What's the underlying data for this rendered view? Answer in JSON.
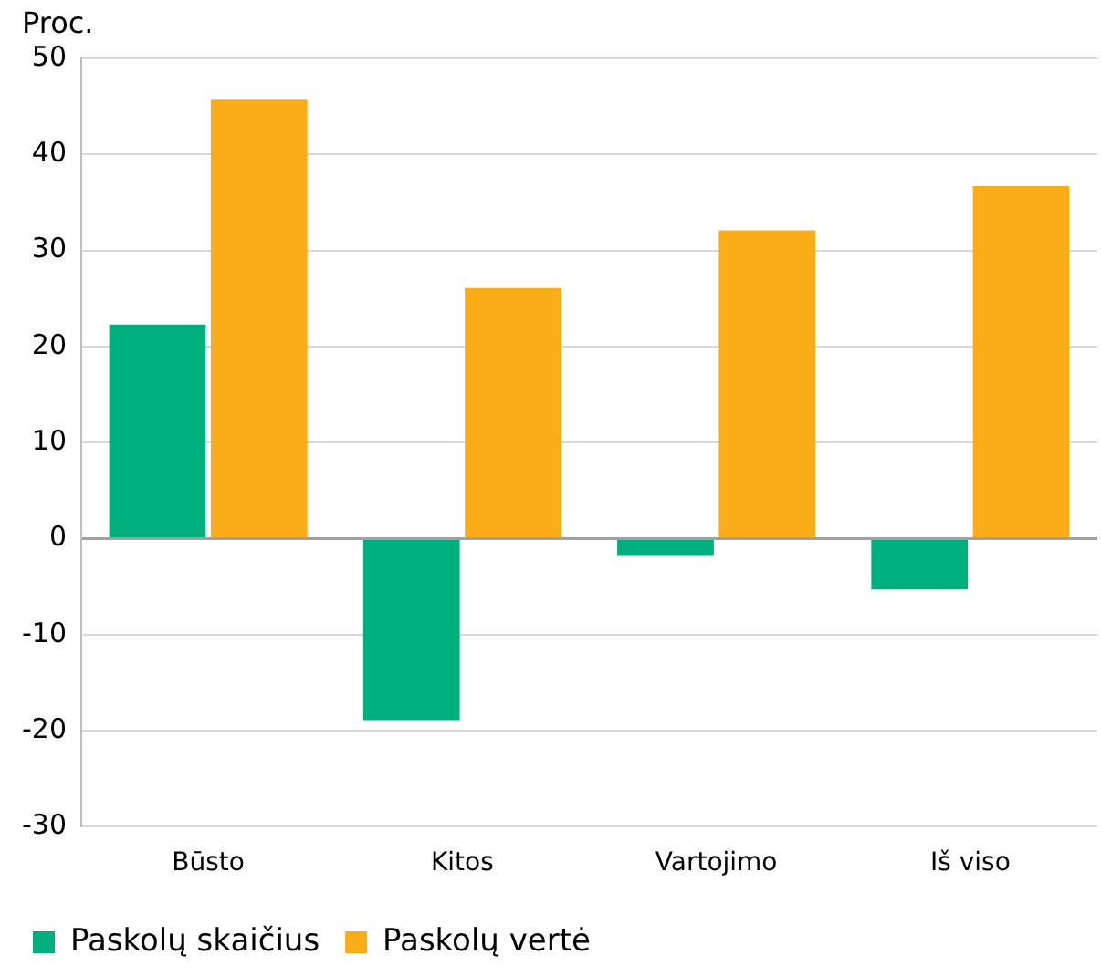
{
  "chart_data": {
    "type": "bar",
    "ylabel": "Proc.",
    "categories": [
      "Būsto",
      "Kitos",
      "Vartojimo",
      "Iš viso"
    ],
    "series": [
      {
        "name": "Paskolų skaičius",
        "color": "#00b07c",
        "values": [
          22.3,
          -18.9,
          -1.8,
          -5.3
        ]
      },
      {
        "name": "Paskolų vertė",
        "color": "#fbad18",
        "values": [
          45.7,
          26.1,
          32.1,
          36.7
        ]
      }
    ],
    "ylim": [
      -30,
      50
    ],
    "yticks": [
      -30,
      -20,
      -10,
      0,
      10,
      20,
      30,
      40,
      50
    ],
    "grid": "y",
    "legend": "bottom left"
  }
}
